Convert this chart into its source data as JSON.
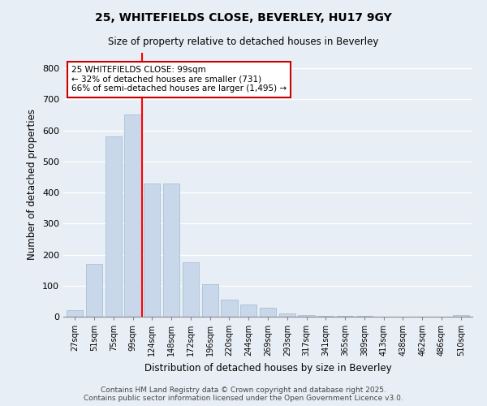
{
  "title": "25, WHITEFIELDS CLOSE, BEVERLEY, HU17 9GY",
  "subtitle": "Size of property relative to detached houses in Beverley",
  "xlabel": "Distribution of detached houses by size in Beverley",
  "ylabel": "Number of detached properties",
  "bar_color": "#c8d8ea",
  "bar_edge_color": "#a8c0d4",
  "background_color": "#e8eef5",
  "grid_color": "#ffffff",
  "categories": [
    "27sqm",
    "51sqm",
    "75sqm",
    "99sqm",
    "124sqm",
    "148sqm",
    "172sqm",
    "196sqm",
    "220sqm",
    "244sqm",
    "269sqm",
    "293sqm",
    "317sqm",
    "341sqm",
    "365sqm",
    "389sqm",
    "413sqm",
    "438sqm",
    "462sqm",
    "486sqm",
    "510sqm"
  ],
  "values": [
    20,
    170,
    580,
    650,
    430,
    430,
    175,
    105,
    55,
    40,
    30,
    10,
    5,
    3,
    2,
    2,
    1,
    0,
    0,
    0,
    5
  ],
  "ylim": [
    0,
    850
  ],
  "yticks": [
    0,
    100,
    200,
    300,
    400,
    500,
    600,
    700,
    800
  ],
  "red_line_x": 3.5,
  "annotation_text": "25 WHITEFIELDS CLOSE: 99sqm\n← 32% of detached houses are smaller (731)\n66% of semi-detached houses are larger (1,495) →",
  "annotation_box_color": "#ffffff",
  "annotation_border_color": "#cc0000",
  "footer": "Contains HM Land Registry data © Crown copyright and database right 2025.\nContains public sector information licensed under the Open Government Licence v3.0.",
  "figsize": [
    6.0,
    5.0
  ],
  "dpi": 100
}
